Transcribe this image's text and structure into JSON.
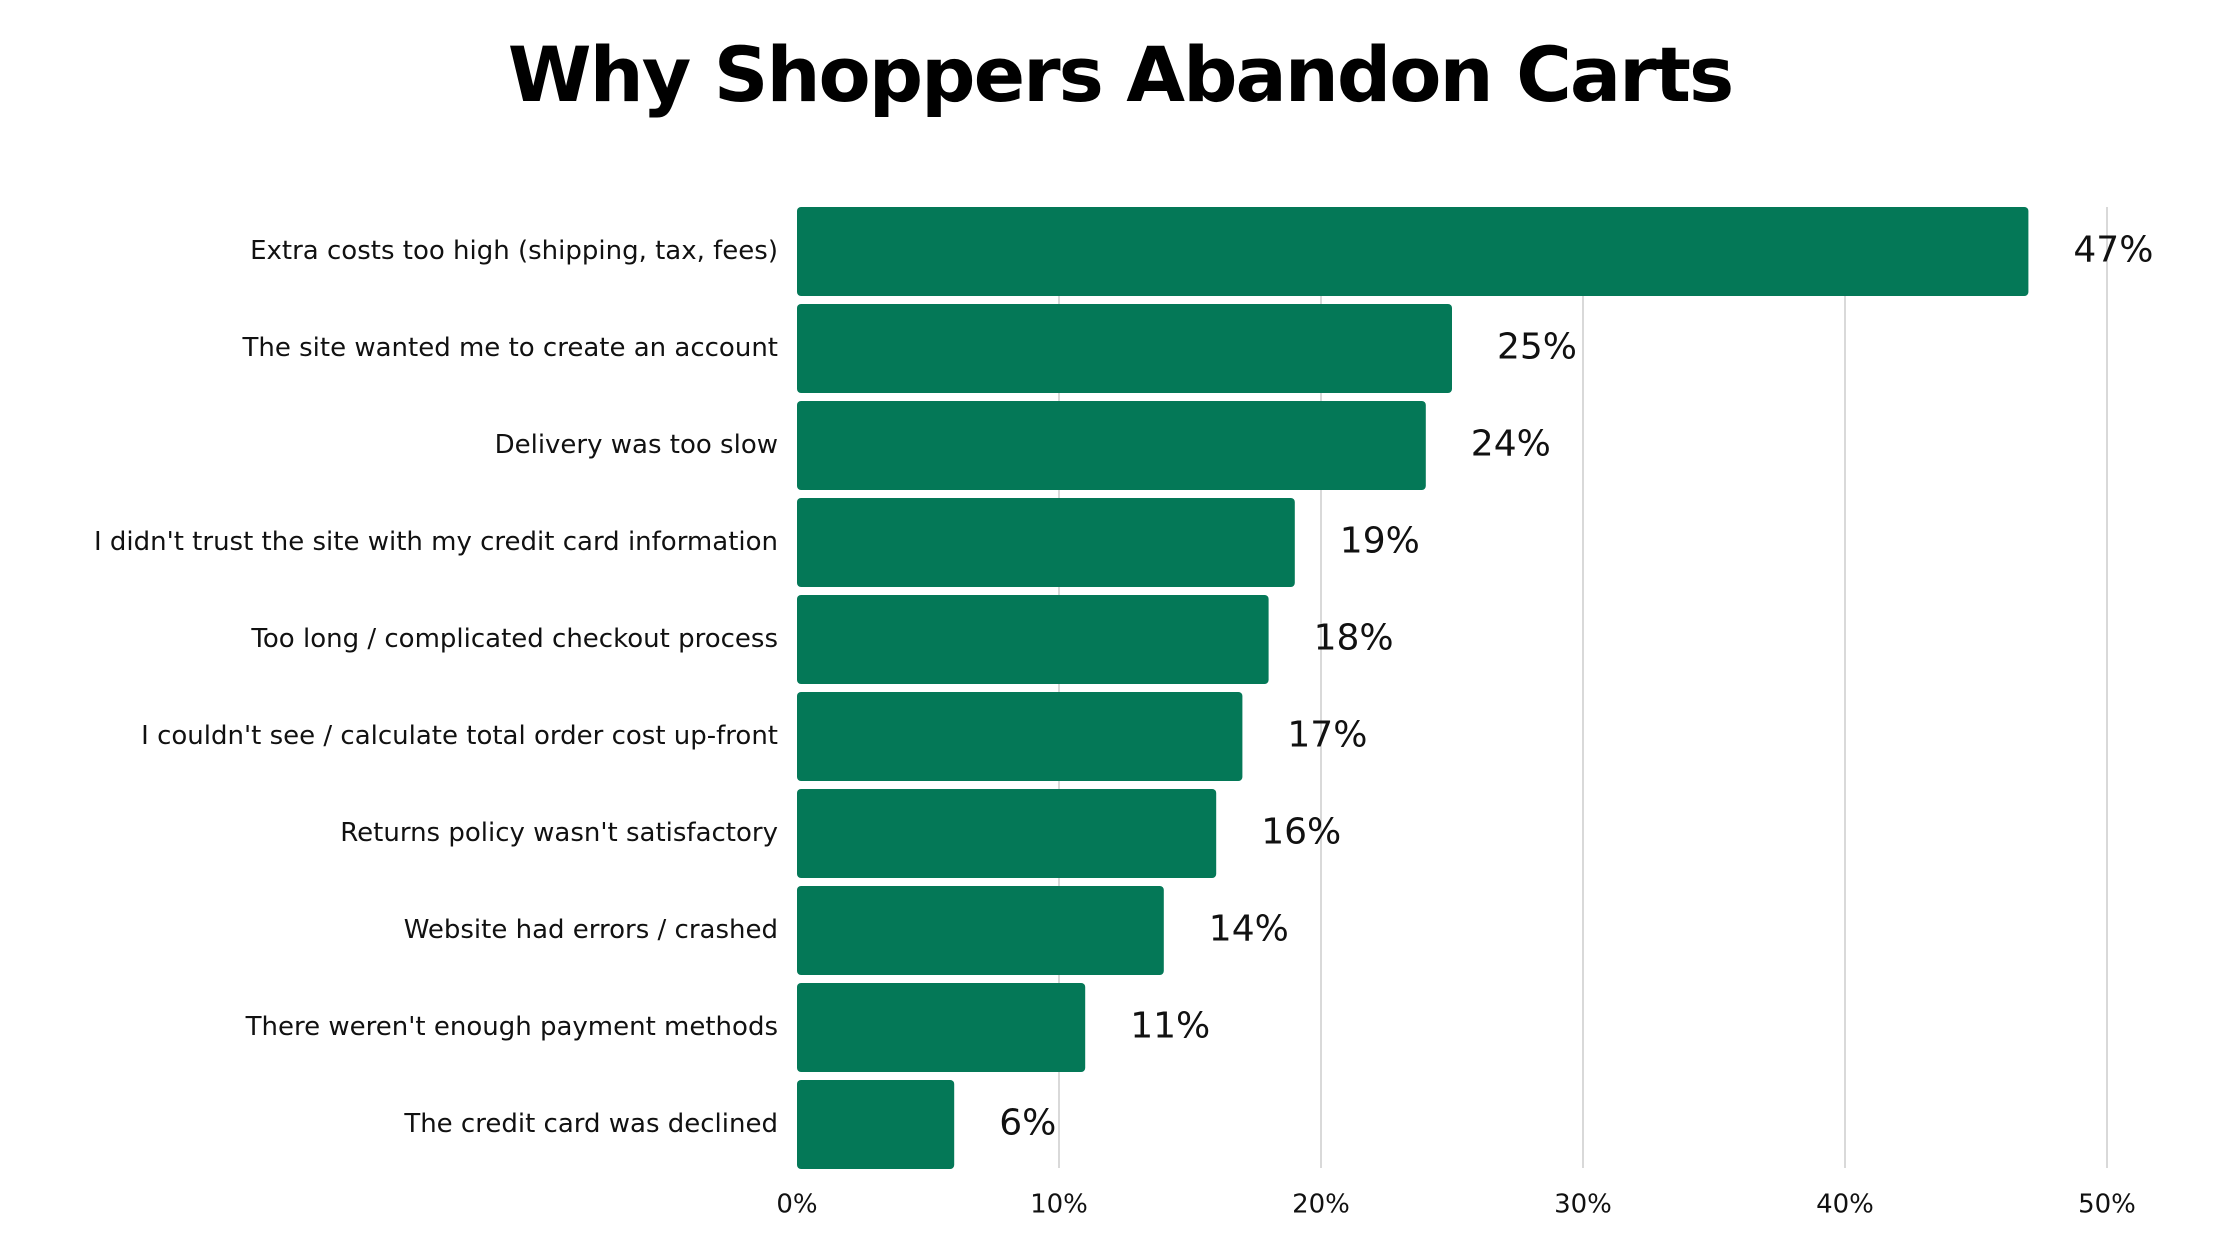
{
  "chart_data": {
    "type": "bar",
    "orientation": "horizontal",
    "title": "Why Shoppers Abandon Carts",
    "categories": [
      "Extra costs too high (shipping, tax, fees)",
      "The site wanted me to create an account",
      "Delivery was too slow",
      "I didn't trust the site with my credit card information",
      "Too long / complicated checkout process",
      "I couldn't see / calculate total order cost up-front",
      "Returns policy wasn't satisfactory",
      "Website had errors / crashed",
      "There weren't enough payment methods",
      "The credit card was declined"
    ],
    "values": [
      47,
      25,
      24,
      19,
      18,
      17,
      16,
      14,
      11,
      6
    ],
    "data_labels": [
      "47%",
      "25%",
      "24%",
      "19%",
      "18%",
      "17%",
      "16%",
      "14%",
      "11%",
      "6%"
    ],
    "xlim": [
      0,
      50
    ],
    "x_ticks": [
      0,
      10,
      20,
      30,
      40,
      50
    ],
    "x_tick_labels": [
      "0%",
      "10%",
      "20%",
      "30%",
      "40%",
      "50%"
    ],
    "grid": "vertical",
    "colors": {
      "bar": "#047857",
      "grid": "#d9d9d9",
      "text": "#111111"
    }
  }
}
